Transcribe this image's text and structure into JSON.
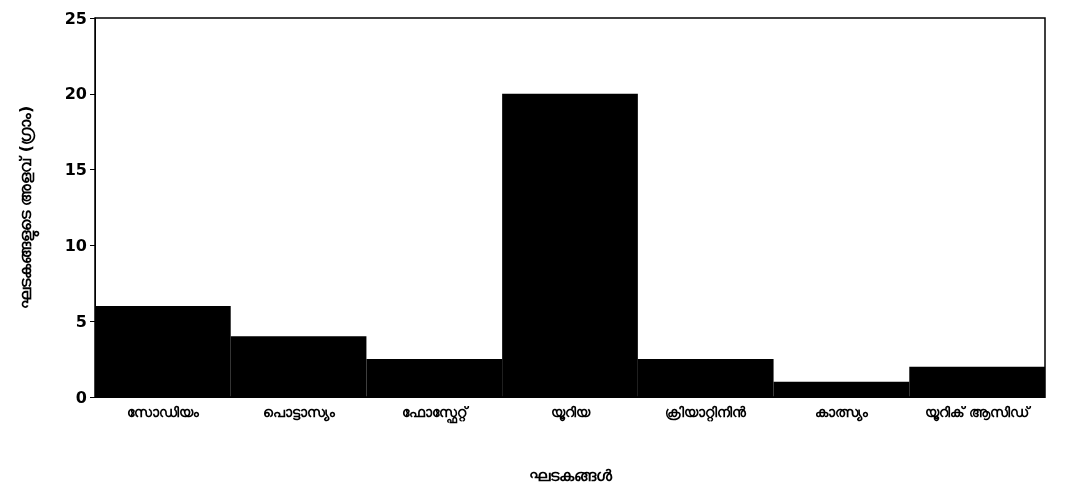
{
  "chart_data": {
    "type": "bar",
    "xlabel": "ഘടകങ്ങൾ",
    "ylabel": "ഘടകങ്ങളുടെ അളവ് (ഗ്രാം)",
    "categories": [
      "സോഡിയം",
      "പൊട്ടാസ്യം",
      "ഫോസ്ഫേറ്റ്",
      "യൂറിയ",
      "ക്രിയാറ്റിനിൻ",
      "കാത്സ്യം",
      "യൂറിക് ആസിഡ്"
    ],
    "values": [
      6,
      4,
      2.5,
      20,
      2.5,
      1,
      2
    ],
    "color": "#000000",
    "ylim": [
      0,
      25
    ],
    "yticks": [
      0,
      5,
      10,
      15,
      20,
      25
    ],
    "grid": false
  }
}
